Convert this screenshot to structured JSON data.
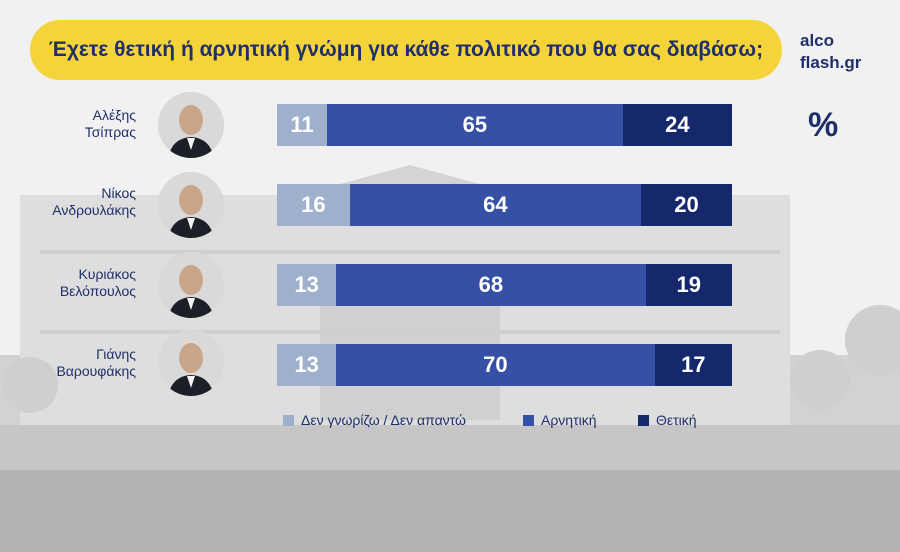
{
  "title": "Έχετε θετική ή αρνητική γνώμη για κάθε πολιτικό που θα σας διαβάσω;",
  "brand": {
    "line1": "alco",
    "line2": "flash.gr"
  },
  "colors": {
    "title_bg": "#f4d43a",
    "text": "#1f2f6b",
    "dont_know": "#9fb0cc",
    "negative": "#3550a5",
    "positive": "#15286b"
  },
  "chart_data": {
    "type": "bar",
    "orientation": "horizontal-stacked",
    "unit": "%",
    "categories": [
      "Αλέξης Τσίπρας",
      "Νίκος Ανδρουλάκης",
      "Κυριάκος Βελόπουλος",
      "Γιάνης Βαρουφάκης"
    ],
    "category_lines": [
      [
        "Αλέξης",
        "Τσίπρας"
      ],
      [
        "Νίκος",
        "Ανδρουλάκης"
      ],
      [
        "Κυριάκος",
        "Βελόπουλος"
      ],
      [
        "Γιάνης",
        "Βαρουφάκης"
      ]
    ],
    "series": [
      {
        "name": "Δεν γνωρίζω / Δεν απαντώ",
        "values": [
          11,
          16,
          13,
          13
        ],
        "color": "#9fb0cc"
      },
      {
        "name": "Αρνητική",
        "values": [
          65,
          64,
          68,
          70
        ],
        "color": "#3550a5"
      },
      {
        "name": "Θετική",
        "values": [
          24,
          20,
          19,
          17
        ],
        "color": "#15286b"
      }
    ],
    "legend_position": "bottom"
  }
}
